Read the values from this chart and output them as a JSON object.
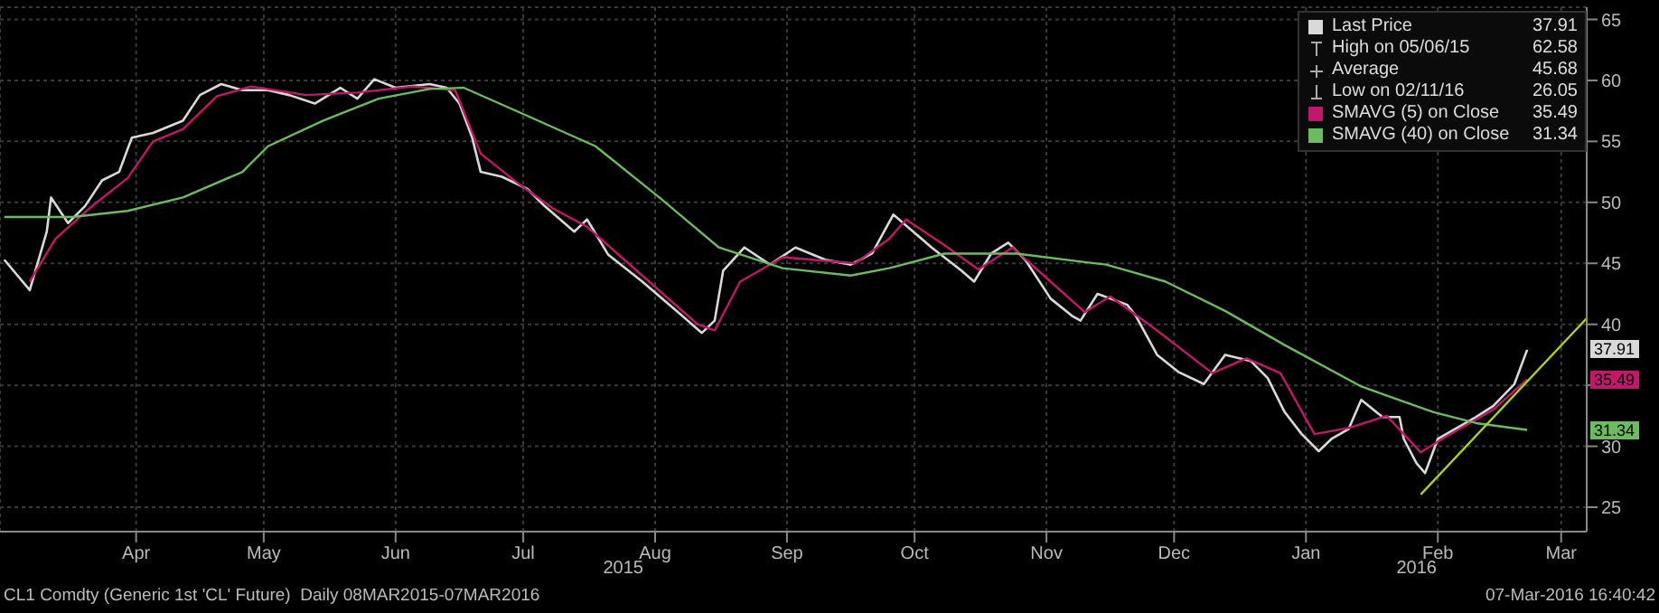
{
  "chart_data": {
    "type": "line",
    "xlim": [
      "2015-03-14",
      "2016-03-21"
    ],
    "xticks": [
      {
        "value": "2015-04-15",
        "label": "Apr"
      },
      {
        "value": "2015-05-15",
        "label": "May"
      },
      {
        "value": "2015-06-15",
        "label": "Jun"
      },
      {
        "value": "2015-07-15",
        "label": "Jul"
      },
      {
        "value": "2015-08-15",
        "label": "Aug"
      },
      {
        "value": "2015-09-15",
        "label": "Sep"
      },
      {
        "value": "2015-10-15",
        "label": "Oct"
      },
      {
        "value": "2015-11-15",
        "label": "Nov"
      },
      {
        "value": "2015-12-15",
        "label": "Dec"
      },
      {
        "value": "2016-01-15",
        "label": "Jan"
      },
      {
        "value": "2016-02-15",
        "label": "Feb"
      },
      {
        "value": "2016-03-15",
        "label": "Mar"
      }
    ],
    "ylim": [
      23,
      66
    ],
    "yticks": [
      25,
      30,
      {
        "value": 35,
        "label": null
      },
      40,
      45,
      50,
      55,
      60,
      65
    ],
    "grid": true,
    "legend": "top right",
    "marker": "none",
    "series": [
      {
        "name": "Last Price",
        "color": "#d9d9d9",
        "x": [
          "2015-03-15",
          "2015-03-21",
          "2015-03-25",
          "2015-03-26",
          "2015-03-30",
          "2015-04-03",
          "2015-04-07",
          "2015-04-11",
          "2015-04-14",
          "2015-04-19",
          "2015-04-26",
          "2015-04-30",
          "2015-05-05",
          "2015-05-10",
          "2015-05-16",
          "2015-05-21",
          "2015-05-27",
          "2015-06-02",
          "2015-06-06",
          "2015-06-10",
          "2015-06-15",
          "2015-06-23",
          "2015-06-27",
          "2015-06-30",
          "2015-07-03",
          "2015-07-05",
          "2015-07-10",
          "2015-07-16",
          "2015-07-20",
          "2015-07-27",
          "2015-07-30",
          "2015-08-04",
          "2015-08-12",
          "2015-08-20",
          "2015-08-26",
          "2015-08-29",
          "2015-08-31",
          "2015-09-05",
          "2015-09-11",
          "2015-09-17",
          "2015-09-24",
          "2015-09-30",
          "2015-10-05",
          "2015-10-10",
          "2015-10-13",
          "2015-10-19",
          "2015-10-26",
          "2015-10-29",
          "2015-11-02",
          "2015-11-06",
          "2015-11-10",
          "2015-11-16",
          "2015-11-21",
          "2015-11-23",
          "2015-11-27",
          "2015-12-04",
          "2015-12-06",
          "2015-12-11",
          "2015-12-16",
          "2015-12-22",
          "2015-12-27",
          "2016-01-02",
          "2016-01-06",
          "2016-01-10",
          "2016-01-14",
          "2016-01-18",
          "2016-01-21",
          "2016-01-25",
          "2016-01-28",
          "2016-02-02",
          "2016-02-06",
          "2016-02-07",
          "2016-02-10",
          "2016-02-12",
          "2016-02-15",
          "2016-02-19",
          "2016-02-24",
          "2016-02-28",
          "2016-03-04",
          "2016-03-07"
        ],
        "values": [
          45.3,
          42.8,
          47.6,
          50.4,
          48.3,
          49.7,
          51.8,
          52.5,
          55.3,
          55.7,
          56.7,
          58.8,
          59.7,
          59.2,
          59.2,
          58.8,
          58.1,
          59.4,
          58.5,
          60.1,
          59.4,
          59.7,
          59.4,
          58.1,
          55.3,
          52.5,
          52.1,
          51.1,
          49.7,
          47.6,
          48.6,
          45.7,
          43.5,
          41.1,
          39.3,
          40.3,
          44.4,
          46.3,
          44.9,
          46.3,
          45.3,
          44.9,
          45.8,
          49.0,
          48.1,
          46.3,
          44.4,
          43.5,
          45.8,
          46.7,
          45.3,
          42.1,
          40.7,
          40.3,
          42.5,
          41.6,
          40.7,
          37.5,
          36.1,
          35.1,
          37.5,
          37.0,
          35.6,
          32.8,
          31.0,
          29.6,
          30.6,
          31.4,
          33.8,
          32.4,
          32.4,
          30.6,
          28.6,
          27.8,
          30.6,
          31.4,
          32.4,
          33.3,
          35.1,
          37.91
        ]
      },
      {
        "name": "SMAVG (5) on Close",
        "color": "#c2186b",
        "x": [
          "2015-03-21",
          "2015-03-27",
          "2015-04-04",
          "2015-04-13",
          "2015-04-19",
          "2015-04-26",
          "2015-05-04",
          "2015-05-12",
          "2015-05-25",
          "2015-06-06",
          "2015-06-19",
          "2015-06-29",
          "2015-07-05",
          "2015-07-14",
          "2015-07-22",
          "2015-07-30",
          "2015-08-12",
          "2015-08-25",
          "2015-08-29",
          "2015-09-04",
          "2015-09-14",
          "2015-10-01",
          "2015-10-09",
          "2015-10-13",
          "2015-10-22",
          "2015-10-30",
          "2015-11-07",
          "2015-11-16",
          "2015-11-24",
          "2015-11-30",
          "2015-12-11",
          "2015-12-24",
          "2016-01-01",
          "2016-01-09",
          "2016-01-17",
          "2016-01-25",
          "2016-02-03",
          "2016-02-11",
          "2016-02-17",
          "2016-02-28",
          "2016-03-07"
        ],
        "values": [
          43.5,
          47.0,
          49.5,
          52.0,
          55.0,
          56.0,
          58.7,
          59.5,
          58.8,
          59.0,
          59.5,
          59.2,
          54.0,
          51.5,
          49.5,
          48.0,
          44.0,
          40.0,
          39.5,
          43.5,
          45.5,
          45.0,
          47.0,
          48.6,
          46.5,
          44.5,
          46.3,
          43.5,
          41.0,
          42.3,
          39.5,
          36.0,
          37.2,
          36.0,
          31.0,
          31.5,
          32.5,
          29.5,
          30.8,
          33.0,
          35.49
        ]
      },
      {
        "name": "SMAVG (40) on Close",
        "color": "#6dbb5f",
        "x": [
          "2015-03-15",
          "2015-03-31",
          "2015-04-13",
          "2015-04-26",
          "2015-05-10",
          "2015-05-16",
          "2015-05-29",
          "2015-06-11",
          "2015-06-23",
          "2015-07-01",
          "2015-07-14",
          "2015-08-01",
          "2015-08-16",
          "2015-08-30",
          "2015-09-14",
          "2015-09-30",
          "2015-10-09",
          "2015-10-22",
          "2015-11-08",
          "2015-11-24",
          "2015-11-29",
          "2015-12-13",
          "2015-12-27",
          "2016-01-10",
          "2016-01-28",
          "2016-02-14",
          "2016-02-24",
          "2016-03-07"
        ],
        "values": [
          48.8,
          48.8,
          49.3,
          50.4,
          52.5,
          54.6,
          56.7,
          58.5,
          59.3,
          59.4,
          57.4,
          54.6,
          50.4,
          46.3,
          44.6,
          44.0,
          44.6,
          45.8,
          45.8,
          45.1,
          44.9,
          43.5,
          41.1,
          38.3,
          34.9,
          32.8,
          31.9,
          31.34
        ]
      },
      {
        "color": "#a8d420",
        "x": [
          "2016-02-11",
          "2016-03-21"
        ],
        "values": [
          26.05,
          40.5
        ]
      }
    ],
    "annotations": [
      "High on 05/06/15 62.58",
      "Average 45.68",
      "Low on 02/11/16 26.05",
      "CL1 Comdty (Generic 1st 'CL' Future)  Daily 08MAR2015-07MAR2016",
      "07-Mar-2016 16:40:42",
      "2015",
      "2016",
      "37.91",
      "35.49",
      "31.34"
    ]
  }
}
